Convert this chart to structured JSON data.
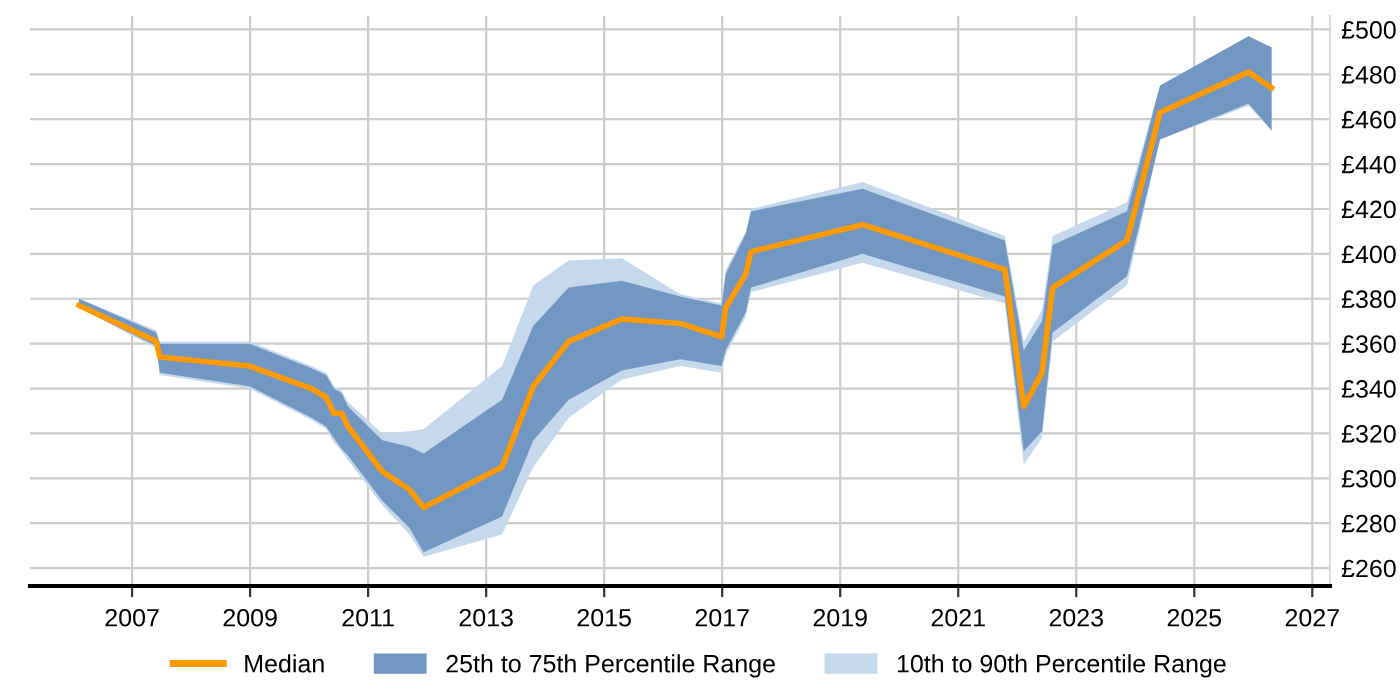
{
  "chart_data": {
    "type": "line",
    "x": [
      2006.1,
      2007.41,
      2007.47,
      2008.99,
      2010.04,
      2010.29,
      2010.42,
      2010.55,
      2010.66,
      2011.24,
      2011.7,
      2011.94,
      2013.27,
      2013.8,
      2014.4,
      2015.3,
      2016.29,
      2016.99,
      2017.06,
      2017.4,
      2017.49,
      2019.38,
      2021.79,
      2022.11,
      2022.42,
      2022.6,
      2023.86,
      2024.42,
      2025.92,
      2026.31
    ],
    "series": [
      {
        "type": "area",
        "name": "10th to 90th Percentile Range",
        "color": "#c6d9ec",
        "values": [
          null,
          null,
          null,
          null,
          null,
          null,
          null,
          null,
          null,
          null,
          null,
          null,
          null,
          null,
          null,
          null,
          null,
          null,
          null,
          null,
          null,
          null,
          null,
          null,
          null,
          null,
          null,
          null,
          null,
          null
        ],
        "lower": [
          376,
          358,
          346,
          340,
          326,
          322,
          316,
          312,
          308,
          288,
          275,
          265,
          275,
          305,
          327,
          344,
          350,
          347,
          355,
          372,
          383,
          396,
          378,
          306,
          318,
          361,
          386,
          451,
          466,
          455
        ],
        "upper": [
          380,
          366,
          361,
          361,
          350,
          347,
          341,
          339,
          334,
          320,
          321,
          322,
          350,
          386,
          397,
          398,
          382,
          378,
          393,
          410,
          420,
          432,
          408,
          361,
          375,
          408,
          423,
          475,
          497,
          492
        ]
      },
      {
        "type": "area",
        "name": "25th to 75th Percentile Range",
        "color": "#7297c2",
        "values": [
          null,
          null,
          null,
          null,
          null,
          null,
          null,
          null,
          null,
          null,
          null,
          null,
          null,
          null,
          null,
          null,
          null,
          null,
          null,
          null,
          null,
          null,
          null,
          null,
          null,
          null,
          null,
          null,
          null,
          null
        ],
        "lower": [
          376,
          359,
          347,
          341,
          327,
          323,
          318,
          313,
          310,
          290,
          278,
          267,
          283,
          317,
          335,
          348,
          353,
          350,
          357,
          374,
          385,
          400,
          381,
          312,
          321,
          365,
          390,
          451,
          467,
          455
        ],
        "upper": [
          380,
          365,
          360,
          360,
          349,
          346,
          340,
          338,
          332,
          317,
          314,
          311,
          335,
          368,
          385,
          388,
          381,
          377,
          391,
          409,
          419,
          429,
          406,
          357,
          370,
          404,
          419,
          475,
          497,
          492
        ]
      },
      {
        "name": "Median",
        "color": "#ff9900",
        "values": [
          377,
          361,
          354,
          350,
          340,
          336,
          329,
          329,
          323,
          303,
          295,
          287,
          305,
          341,
          361,
          371,
          369,
          363,
          376,
          391,
          401,
          413,
          393,
          332,
          347,
          385,
          406,
          463,
          481,
          474
        ]
      }
    ],
    "xlim": [
      2005.27,
      2027.3
    ],
    "xticks": [
      2007,
      2009,
      2011,
      2013,
      2015,
      2017,
      2019,
      2021,
      2023,
      2025,
      2027
    ],
    "ylim": [
      252,
      506
    ],
    "yticks": [
      {
        "value": 260,
        "label": "£260"
      },
      {
        "value": 280,
        "label": "£280"
      },
      {
        "value": 300,
        "label": "£300"
      },
      {
        "value": 320,
        "label": "£320"
      },
      {
        "value": 340,
        "label": "£340"
      },
      {
        "value": 360,
        "label": "£360"
      },
      {
        "value": 380,
        "label": "£380"
      },
      {
        "value": 400,
        "label": "£400"
      },
      {
        "value": 420,
        "label": "£420"
      },
      {
        "value": 440,
        "label": "£440"
      },
      {
        "value": 460,
        "label": "£460"
      },
      {
        "value": 480,
        "label": "£480"
      },
      {
        "value": 500,
        "label": "£500"
      }
    ],
    "grid": true,
    "legend": "bottom",
    "marker": "none",
    "line_style": "solid"
  }
}
